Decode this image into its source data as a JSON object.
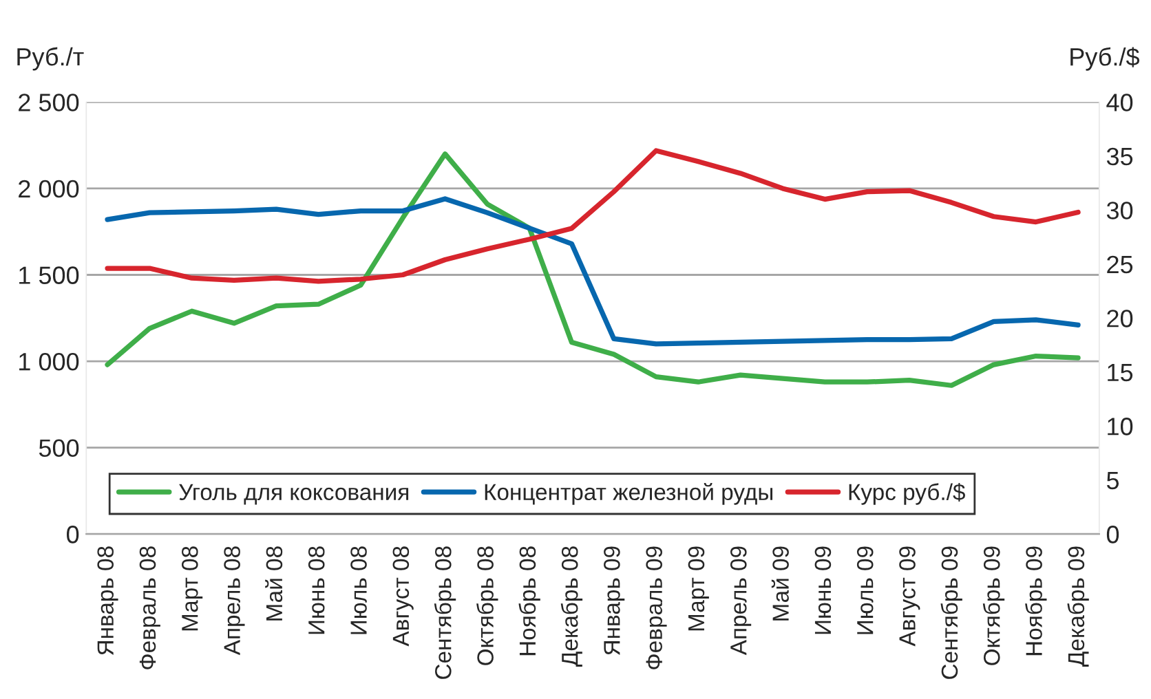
{
  "chart_data": {
    "type": "line",
    "ylabel": "Руб./т",
    "y2label": "Руб./$",
    "categories": [
      "Январь 08",
      "Февраль 08",
      "Март 08",
      "Апрель 08",
      "Май 08",
      "Июнь 08",
      "Июль 08",
      "Август 08",
      "Сентябрь 08",
      "Октябрь 08",
      "Ноябрь 08",
      "Декабрь 08",
      "Январь 09",
      "Февраль 09",
      "Март 09",
      "Апрель 09",
      "Май 09",
      "Июнь 09",
      "Июль 09",
      "Август 09",
      "Сентябрь 09",
      "Октябрь 09",
      "Ноябрь 09",
      "Декабрь 09"
    ],
    "series": [
      {
        "name": "Уголь для коксования",
        "color": "#3fae49",
        "values": [
          980,
          1190,
          1290,
          1220,
          1320,
          1330,
          1440,
          1830,
          2200,
          1910,
          1770,
          1110,
          1040,
          910,
          880,
          920,
          900,
          880,
          880,
          890,
          860,
          980,
          1030,
          1020
        ]
      },
      {
        "name": "Концентрат железной руды",
        "color": "#0767ae",
        "values": [
          1820,
          1860,
          1865,
          1870,
          1880,
          1850,
          1870,
          1870,
          1940,
          1860,
          1770,
          1680,
          1130,
          1100,
          1105,
          1110,
          1115,
          1120,
          1125,
          1125,
          1130,
          1230,
          1240,
          1210
        ]
      },
      {
        "name": "Курс руб./$",
        "color": "#d7252d",
        "axis": "y2",
        "values": [
          24.6,
          24.6,
          23.7,
          23.5,
          23.7,
          23.4,
          23.6,
          24.0,
          25.4,
          26.4,
          27.3,
          28.3,
          31.7,
          35.5,
          34.5,
          33.4,
          32.0,
          31.0,
          31.7,
          31.8,
          30.7,
          29.4,
          28.9,
          29.8
        ]
      }
    ],
    "ylim": [
      0,
      2500
    ],
    "yticks": [
      0,
      {
        "value": 500,
        "label": "500"
      },
      {
        "value": 1000,
        "label": "1 000"
      },
      {
        "value": 1500,
        "label": "1 500"
      },
      {
        "value": 2000,
        "label": "2 000"
      },
      {
        "value": 2500,
        "label": "2 500"
      }
    ],
    "y2lim": [
      0,
      40
    ],
    "y2ticks": [
      0,
      5,
      10,
      15,
      20,
      25,
      30,
      35,
      40
    ],
    "grid": "y",
    "legend": "bottom",
    "marker": "none",
    "line_style": "solid"
  }
}
